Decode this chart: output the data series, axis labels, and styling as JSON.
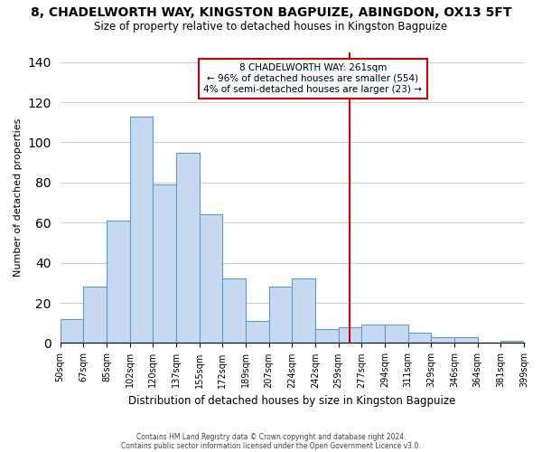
{
  "title": "8, CHADELWORTH WAY, KINGSTON BAGPUIZE, ABINGDON, OX13 5FT",
  "subtitle": "Size of property relative to detached houses in Kingston Bagpuize",
  "xlabel": "Distribution of detached houses by size in Kingston Bagpuize",
  "ylabel": "Number of detached properties",
  "bin_labels": [
    "50sqm",
    "67sqm",
    "85sqm",
    "102sqm",
    "120sqm",
    "137sqm",
    "155sqm",
    "172sqm",
    "189sqm",
    "207sqm",
    "224sqm",
    "242sqm",
    "259sqm",
    "277sqm",
    "294sqm",
    "311sqm",
    "329sqm",
    "346sqm",
    "364sqm",
    "381sqm",
    "399sqm"
  ],
  "bar_heights": [
    12,
    28,
    61,
    113,
    79,
    95,
    64,
    32,
    11,
    28,
    32,
    7,
    8,
    9,
    9,
    5,
    3,
    3,
    0,
    1
  ],
  "bar_color": "#c6d9f0",
  "bar_edge_color": "#5b9bd5",
  "vline_x": 12.5,
  "vline_color": "#cc0000",
  "annotation_title": "8 CHADELWORTH WAY: 261sqm",
  "annotation_line1": "← 96% of detached houses are smaller (554)",
  "annotation_line2": "4% of semi-detached houses are larger (23) →",
  "annotation_box_color": "#ffffff",
  "annotation_box_edge": "#cc0000",
  "ylim": [
    0,
    145
  ],
  "yticks": [
    0,
    20,
    40,
    60,
    80,
    100,
    120,
    140
  ],
  "footnote1": "Contains HM Land Registry data © Crown copyright and database right 2024.",
  "footnote2": "Contains public sector information licensed under the Open Government Licence v3.0."
}
